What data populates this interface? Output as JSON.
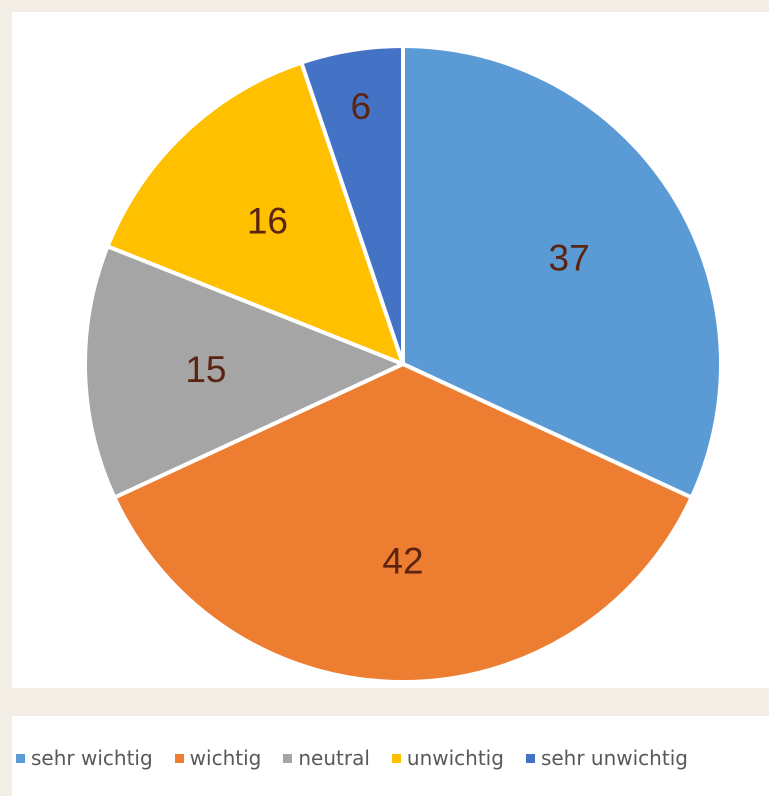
{
  "chart_data": {
    "type": "pie",
    "title": "",
    "start_angle_deg": 0,
    "direction": "clockwise",
    "legend_position": "bottom",
    "slices": [
      {
        "label": "sehr wichtig",
        "value": 37,
        "color": "#5b9bd5"
      },
      {
        "label": "wichtig",
        "value": 42,
        "color": "#ed7d31"
      },
      {
        "label": "neutral",
        "value": 15,
        "color": "#a5a5a5"
      },
      {
        "label": "unwichtig",
        "value": 16,
        "color": "#ffc000"
      },
      {
        "label": "sehr unwichtig",
        "value": 6,
        "color": "#4472c4"
      }
    ]
  }
}
